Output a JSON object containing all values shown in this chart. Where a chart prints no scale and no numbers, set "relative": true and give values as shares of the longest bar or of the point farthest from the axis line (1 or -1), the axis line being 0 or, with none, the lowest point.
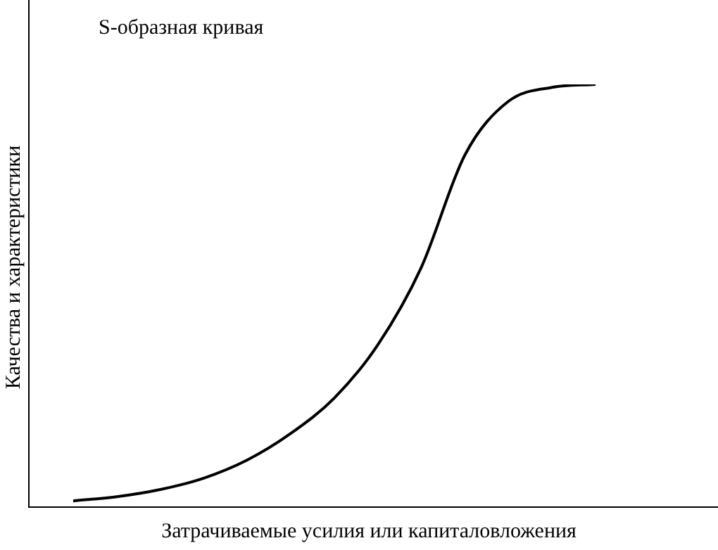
{
  "chart_data": {
    "type": "line",
    "title": "S-образная кривая",
    "xlabel": "Затрачиваемые усилия или капиталовложения",
    "ylabel": "Качества и характеристики",
    "relative": true,
    "categories": [
      null,
      null,
      null,
      null,
      null,
      null,
      null,
      null,
      null,
      null,
      null,
      null,
      null
    ],
    "series": [
      {
        "color": "#000000",
        "values": [
          0.013,
          0.023,
          0.04,
          0.067,
          0.11,
          0.173,
          0.257,
          0.383,
          0.567,
          0.833,
          0.96,
          0.993,
          1
        ]
      }
    ],
    "marker": "none",
    "legend": false
  }
}
